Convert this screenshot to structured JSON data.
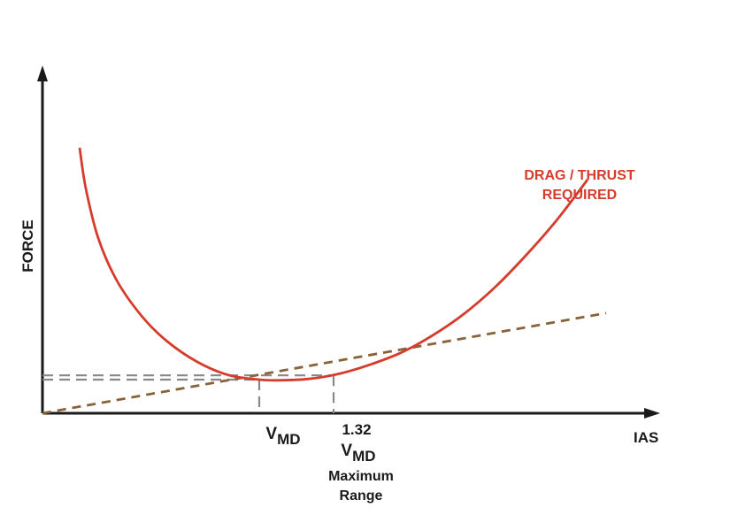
{
  "chart_data": {
    "type": "line",
    "title": "",
    "xlabel": "IAS",
    "ylabel": "FORCE",
    "xlim": [
      0,
      10
    ],
    "ylim": [
      0,
      10
    ],
    "grid": false,
    "colors": {
      "curve": "#d53c2c",
      "tangent": "#8a6238",
      "guide": "#888888",
      "axis": "#1a1a1a",
      "text": "#1a1a1a"
    },
    "series": [
      {
        "name": "DRAG / THRUST REQUIRED",
        "label_lines": [
          "DRAG / THRUST",
          "REQUIRED"
        ],
        "style": "solid",
        "x": [
          0.6,
          0.7,
          0.9,
          1.2,
          1.6,
          2.0,
          2.5,
          3.0,
          3.5,
          3.8,
          4.3,
          4.8,
          5.3,
          5.8,
          6.3,
          6.8,
          7.3,
          7.8,
          8.3,
          8.8
        ],
        "y": [
          7.5,
          6.35,
          4.95,
          3.75,
          2.75,
          2.05,
          1.45,
          1.08,
          0.95,
          0.93,
          0.97,
          1.12,
          1.38,
          1.72,
          2.2,
          2.8,
          3.55,
          4.45,
          5.45,
          6.6
        ]
      },
      {
        "name": "Tangent line",
        "style": "dashed",
        "x": [
          0,
          9.1
        ],
        "y": [
          0,
          2.83
        ]
      }
    ],
    "markers": [
      {
        "name": "VMD",
        "x": 3.5,
        "y": 0.95,
        "label_main": "V",
        "label_sub": "MD"
      },
      {
        "name": "1.32 VMD",
        "x": 4.7,
        "y": 1.07,
        "label_top": "1.32",
        "label_main": "V",
        "label_sub": "MD",
        "caption_lines": [
          "Maximum",
          "Range"
        ]
      }
    ]
  }
}
